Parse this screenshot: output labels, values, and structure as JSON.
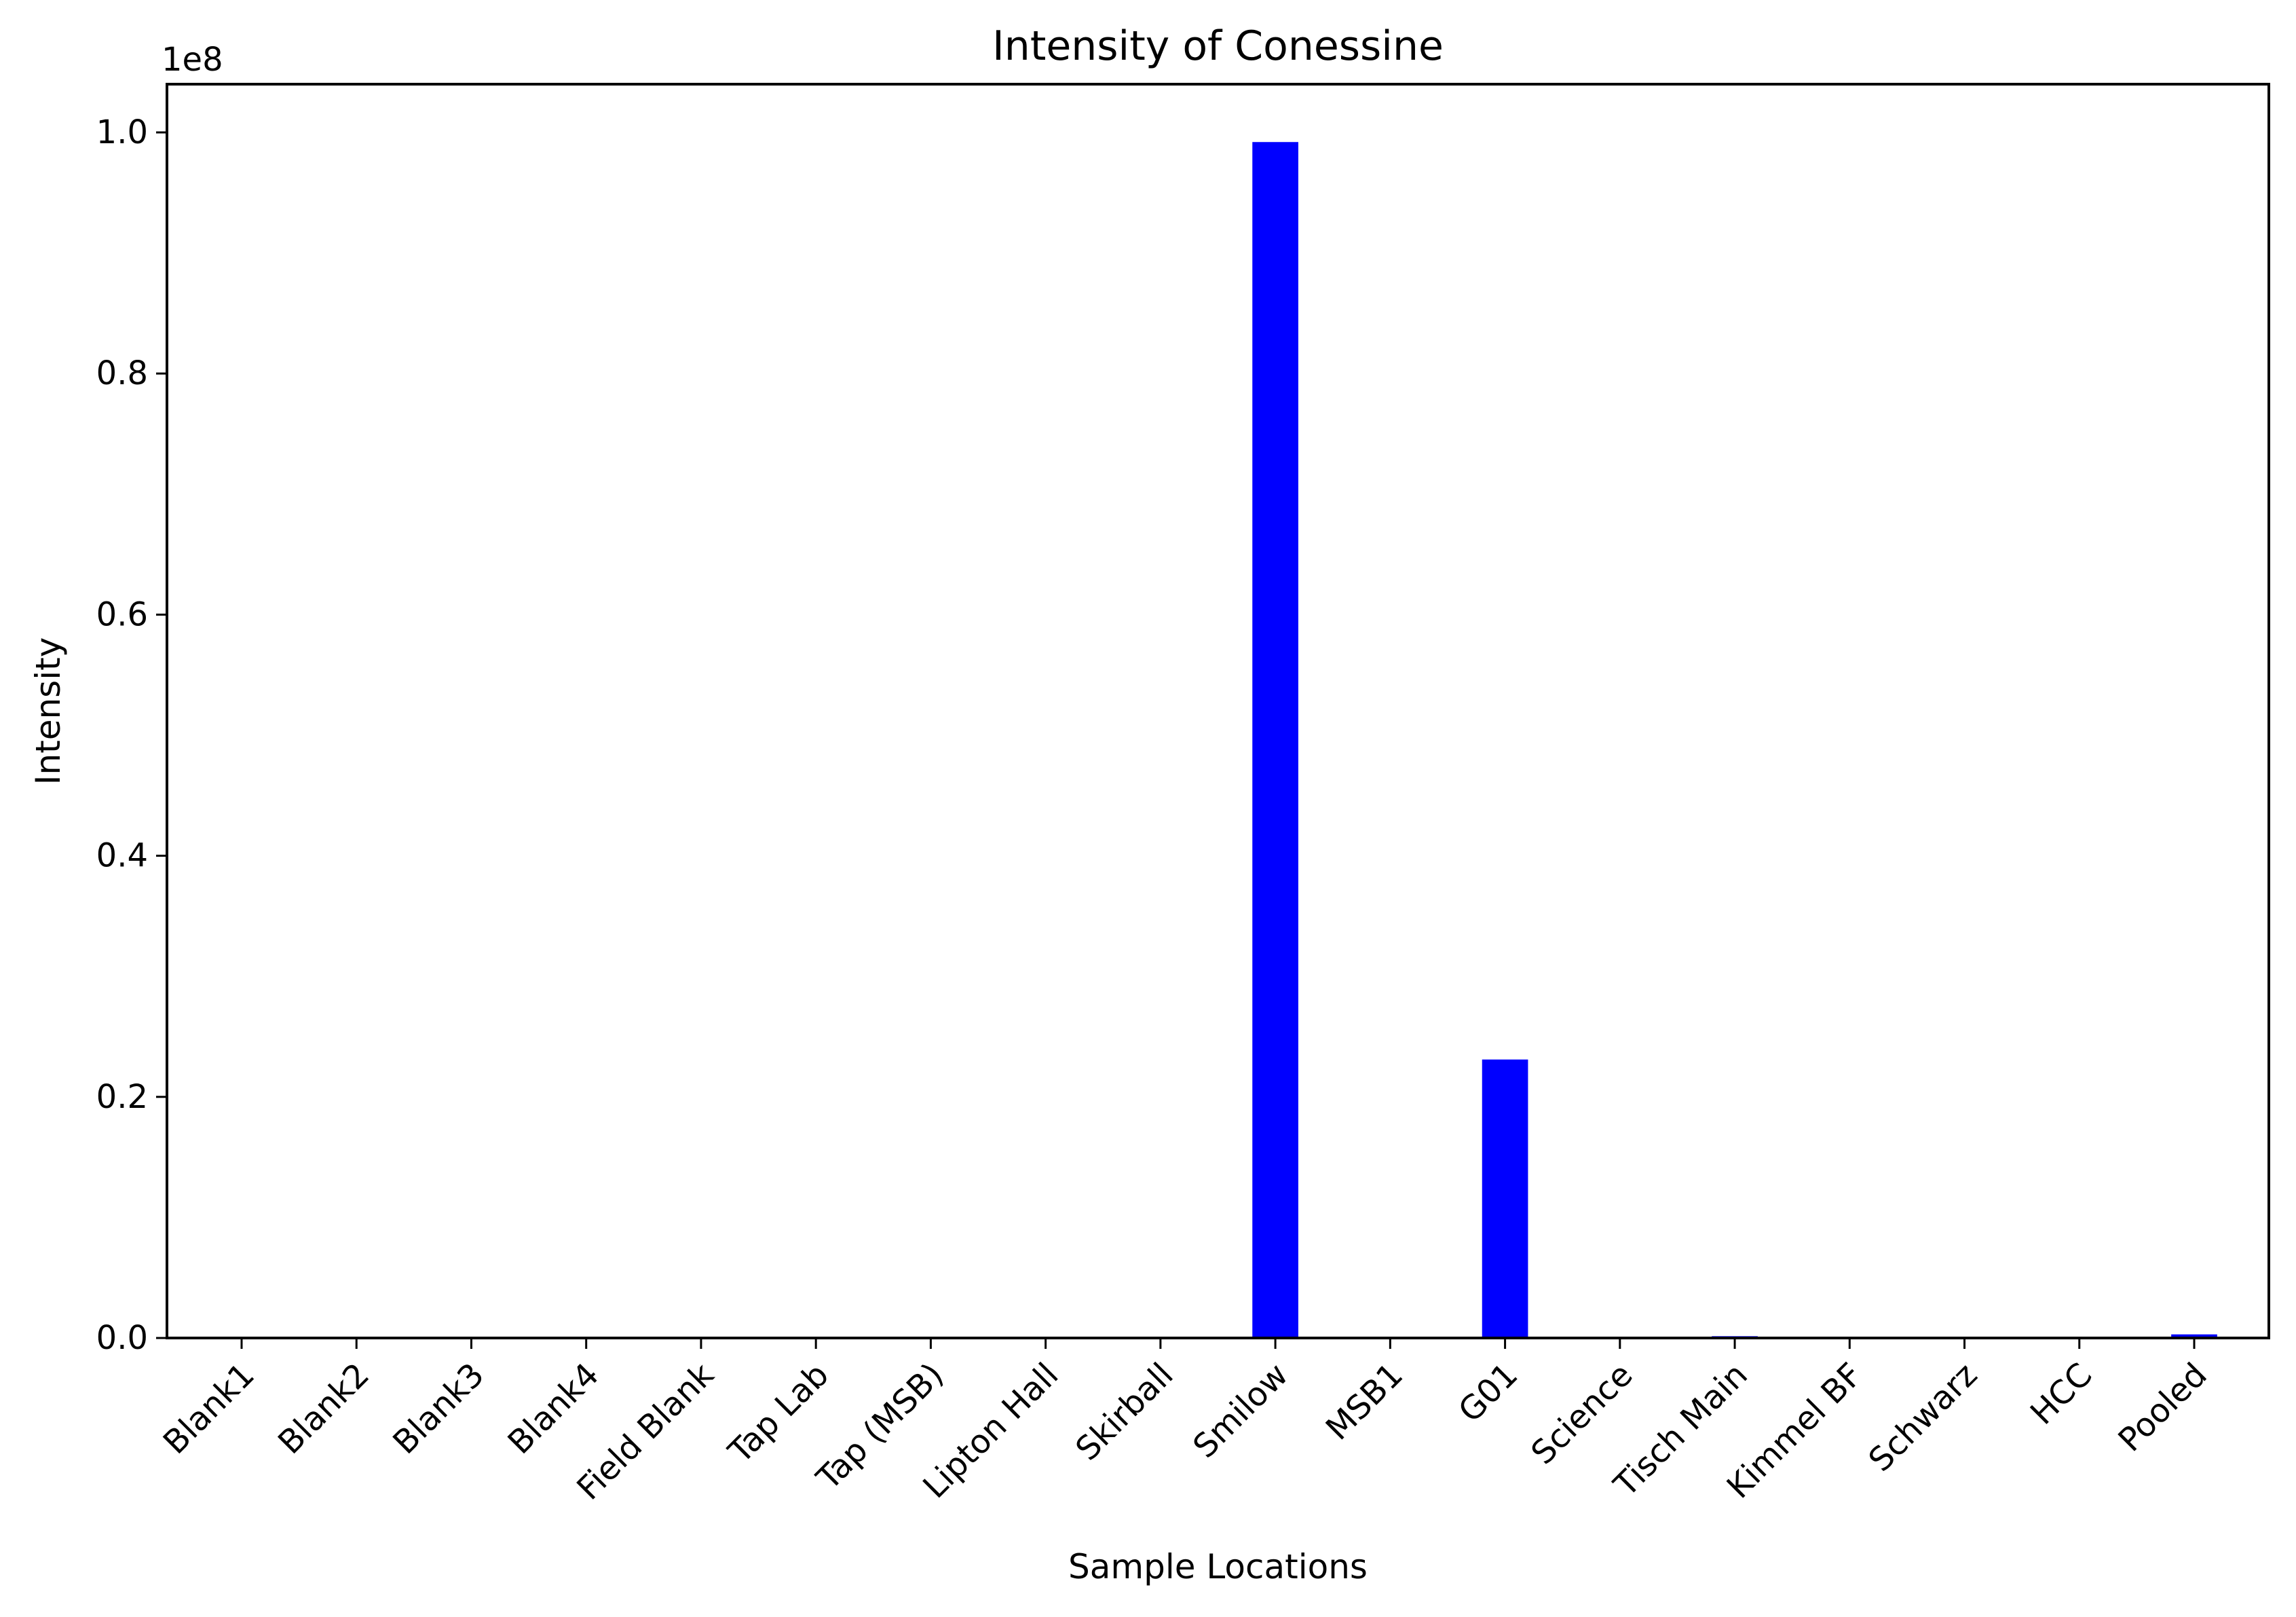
{
  "chart_data": {
    "type": "bar",
    "title": "Intensity of Conessine",
    "xlabel": "Sample Locations",
    "ylabel": "Intensity",
    "y_offset_label": "1e8",
    "ylim": [
      0,
      1.04
    ],
    "y_scale_factor": 100000000,
    "yticks": [
      {
        "value": 0.0,
        "label": "0.0"
      },
      {
        "value": 0.2,
        "label": "0.2"
      },
      {
        "value": 0.4,
        "label": "0.4"
      },
      {
        "value": 0.6,
        "label": "0.6"
      },
      {
        "value": 0.8,
        "label": "0.8"
      },
      {
        "value": 1.0,
        "label": "1.0"
      }
    ],
    "categories": [
      "Blank1",
      "Blank2",
      "Blank3",
      "Blank4",
      "Field Blank",
      "Tap Lab",
      "Tap (MSB)",
      "Lipton Hall",
      "Skirball",
      "Smilow",
      "MSB1",
      "G01",
      "Science",
      "Tisch Main",
      "Kimmel BF",
      "Schwarz",
      "HCC",
      "Pooled"
    ],
    "values": [
      0,
      0,
      0,
      0,
      0,
      0,
      0,
      0,
      0,
      0.992,
      0,
      0.231,
      0,
      0.0015,
      0,
      0,
      0,
      0.003
    ],
    "bar_color": "#0000ff",
    "grid": false,
    "legend": "none"
  }
}
